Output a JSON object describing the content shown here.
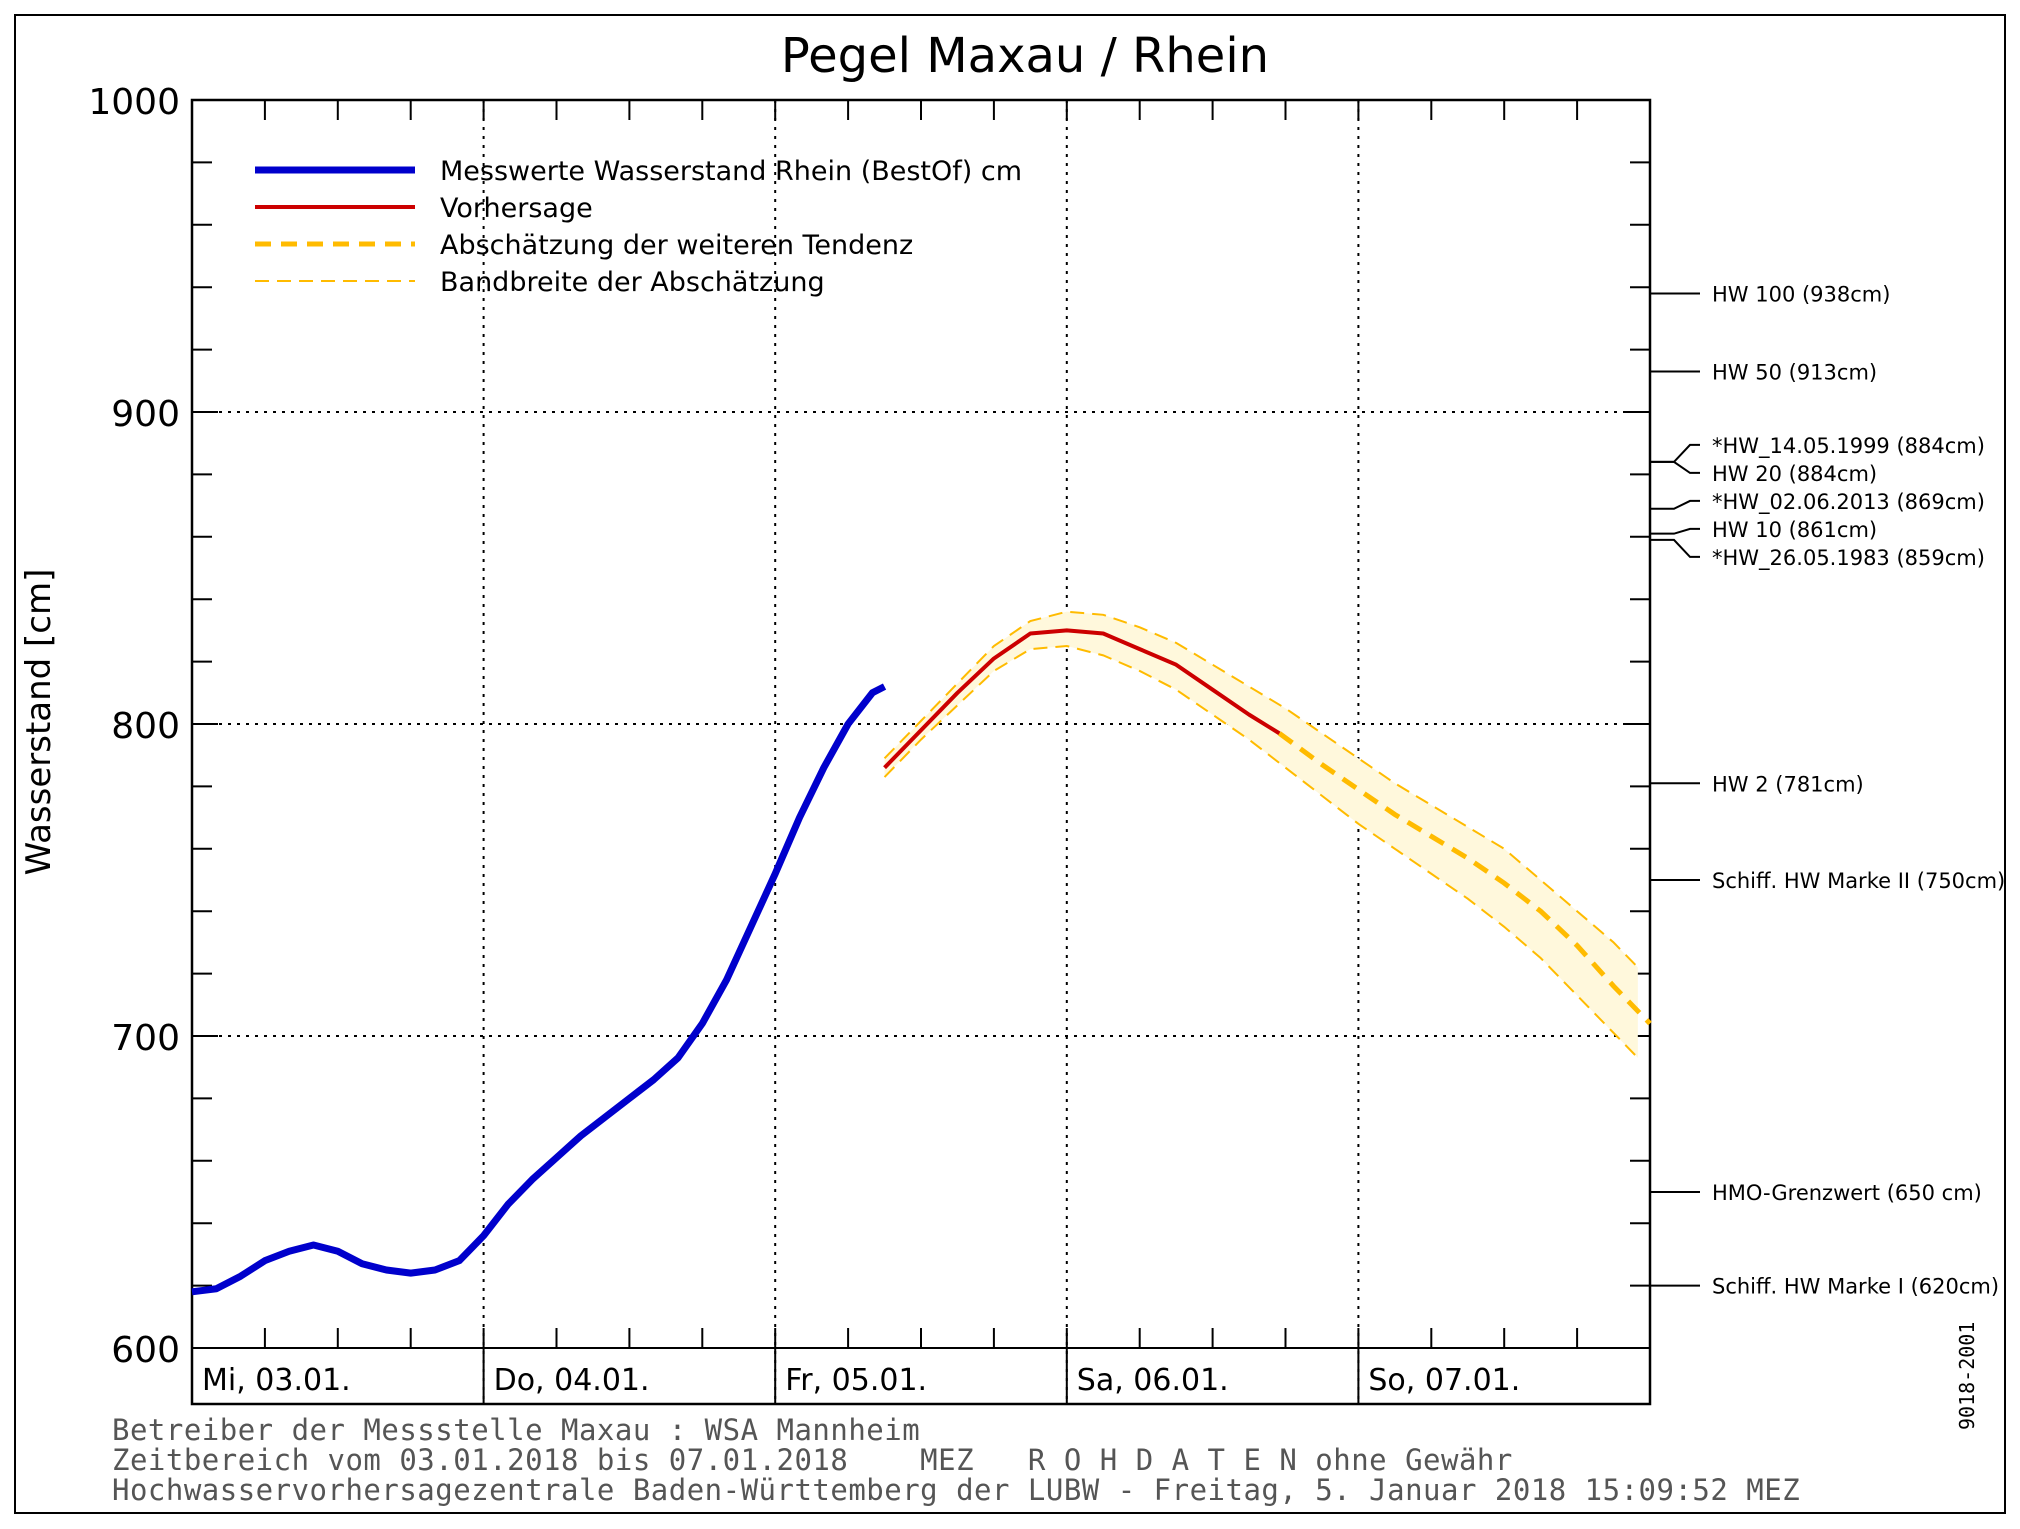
{
  "chart_data": {
    "type": "line",
    "title": "Pegel Maxau / Rhein",
    "ylabel": "Wasserstand [cm]",
    "ylim": [
      600,
      1000
    ],
    "yticks": [
      600,
      700,
      800,
      900,
      1000
    ],
    "grid": true,
    "legend_position": "top-left",
    "day_labels": [
      "Mi, 03.01.",
      "Do, 04.01.",
      "Fr, 05.01.",
      "Sa, 06.01.",
      "So, 07.01."
    ],
    "xlim_hours": [
      0,
      120
    ],
    "legend": [
      "Messwerte Wasserstand Rhein (BestOf) cm",
      "Vorhersage",
      "Abschätzung der weiteren Tendenz",
      "Bandbreite der Abschätzung"
    ],
    "series": [
      {
        "name": "Messwerte Wasserstand Rhein (BestOf) cm",
        "color": "#0000cc",
        "x": [
          0,
          2,
          4,
          6,
          8,
          10,
          12,
          14,
          16,
          18,
          20,
          22,
          24,
          26,
          28,
          30,
          32,
          34,
          36,
          38,
          40,
          42,
          44,
          46,
          48,
          50,
          52,
          54,
          56,
          57
        ],
        "y": [
          618,
          619,
          623,
          628,
          631,
          633,
          631,
          627,
          625,
          624,
          625,
          628,
          636,
          646,
          654,
          661,
          668,
          674,
          680,
          686,
          693,
          704,
          718,
          735,
          752,
          770,
          786,
          800,
          810,
          812
        ]
      },
      {
        "name": "Vorhersage",
        "color": "#cc0000",
        "x": [
          57,
          60,
          63,
          66,
          69,
          72,
          75,
          78,
          81,
          84,
          87,
          89.5
        ],
        "y": [
          786,
          798,
          810,
          821,
          829,
          830,
          829,
          824,
          819,
          811,
          803,
          797
        ]
      },
      {
        "name": "Abschätzung der weiteren Tendenz",
        "color": "#ffbb00",
        "x": [
          89.5,
          93,
          96,
          99,
          102,
          105,
          108,
          111,
          114,
          117,
          120
        ],
        "y": [
          797,
          787,
          779,
          771,
          764,
          757,
          749,
          740,
          729,
          716,
          704
        ]
      },
      {
        "name": "Bandbreite der Abschätzung",
        "color": "#ffbb00",
        "x": [
          57,
          60,
          63,
          66,
          69,
          72,
          75,
          78,
          81,
          84,
          87,
          90,
          93,
          96,
          99,
          102,
          105,
          108,
          111,
          114,
          117,
          119
        ],
        "upper": [
          789,
          801,
          813,
          825,
          833,
          836,
          835,
          831,
          826,
          819,
          812,
          805,
          797,
          789,
          781,
          774,
          767,
          760,
          750,
          740,
          730,
          722
        ],
        "lower": [
          783,
          795,
          806,
          817,
          824,
          825,
          822,
          817,
          811,
          803,
          795,
          786,
          777,
          768,
          760,
          752,
          744,
          735,
          725,
          713,
          701,
          693
        ]
      }
    ],
    "reference_lines": [
      {
        "label": "HW 100 (938cm)",
        "value": 938
      },
      {
        "label": "HW 50 (913cm)",
        "value": 913
      },
      {
        "label": "*HW_14.05.1999 (884cm)",
        "value": 884
      },
      {
        "label": "HW 20 (884cm)",
        "value": 884
      },
      {
        "label": "*HW_02.06.2013 (869cm)",
        "value": 869
      },
      {
        "label": "HW 10 (861cm)",
        "value": 861
      },
      {
        "label": "*HW_26.05.1983 (859cm)",
        "value": 859
      },
      {
        "label": "HW 2 (781cm)",
        "value": 781
      },
      {
        "label": "Schiff. HW Marke II (750cm)",
        "value": 750
      },
      {
        "label": "HMO-Grenzwert (650 cm)",
        "value": 650
      },
      {
        "label": "Schiff. HW Marke I (620cm)",
        "value": 620
      }
    ]
  },
  "footer": {
    "line1": "Betreiber der Messstelle Maxau : WSA Mannheim",
    "line2": "Zeitbereich vom 03.01.2018 bis 07.01.2018    MEZ   R O H D A T E N ohne Gewähr",
    "line3": "Hochwasservorhersagezentrale Baden-Württemberg der LUBW - Freitag, 5. Januar 2018 15:09:52 MEZ"
  },
  "side_code": "9018-2001"
}
